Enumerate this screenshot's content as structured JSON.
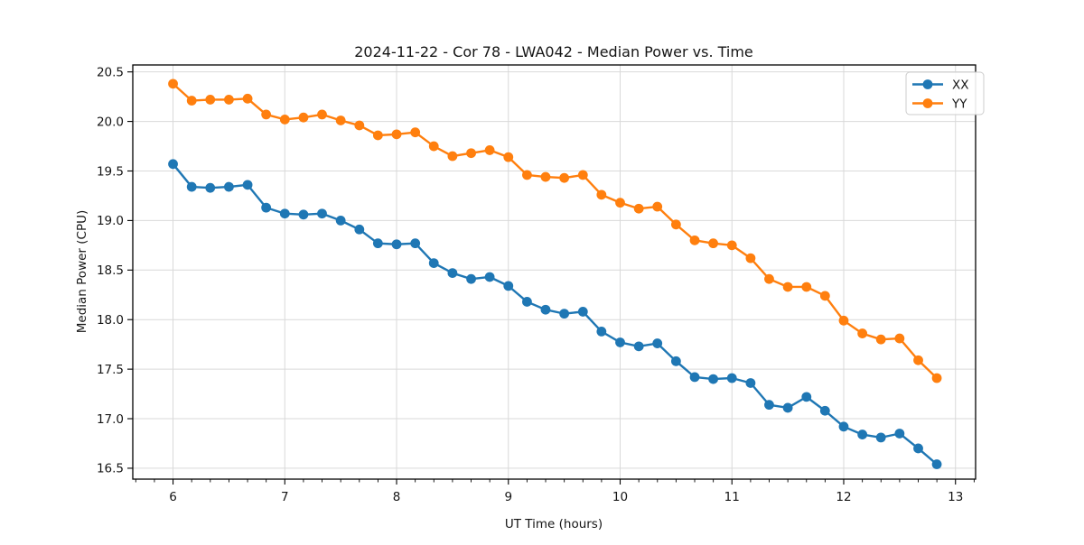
{
  "figure": {
    "background": "#ffffff",
    "spine_color": "#000000",
    "grid_color": "#d9d9d9",
    "text_color": "#151515"
  },
  "legend": {
    "position": "upper right",
    "items": [
      {
        "label": "XX",
        "color": "#1f77b4"
      },
      {
        "label": "YY",
        "color": "#ff7f0e"
      }
    ]
  },
  "chart_data": {
    "type": "line",
    "title": "2024-11-22 - Cor 78 - LWA042 - Median Power vs. Time",
    "xlabel": "UT Time (hours)",
    "ylabel": "Median Power (CPU)",
    "grid": true,
    "marker": "o",
    "xlim": [
      5.64,
      13.18
    ],
    "ylim": [
      16.39,
      20.57
    ],
    "xticks": [
      6,
      7,
      8,
      9,
      10,
      11,
      12,
      13
    ],
    "yticks": [
      16.5,
      17.0,
      17.5,
      18.0,
      18.5,
      19.0,
      19.5,
      20.0,
      20.5
    ],
    "x_minor_step": 0.16667,
    "legend_position": "upper right",
    "x": [
      6.0,
      6.167,
      6.333,
      6.5,
      6.667,
      6.833,
      7.0,
      7.167,
      7.333,
      7.5,
      7.667,
      7.833,
      8.0,
      8.167,
      8.333,
      8.5,
      8.667,
      8.833,
      9.0,
      9.167,
      9.333,
      9.5,
      9.667,
      9.833,
      10.0,
      10.167,
      10.333,
      10.5,
      10.667,
      10.833,
      11.0,
      11.167,
      11.333,
      11.5,
      11.667,
      11.833,
      12.0,
      12.167,
      12.333,
      12.5,
      12.667,
      12.833
    ],
    "series": [
      {
        "name": "XX",
        "color": "#1f77b4",
        "values": [
          19.57,
          19.34,
          19.33,
          19.34,
          19.36,
          19.13,
          19.07,
          19.06,
          19.07,
          19.0,
          18.91,
          18.77,
          18.76,
          18.77,
          18.57,
          18.47,
          18.41,
          18.43,
          18.34,
          18.18,
          18.1,
          18.06,
          18.08,
          17.88,
          17.77,
          17.73,
          17.76,
          17.58,
          17.42,
          17.4,
          17.41,
          17.36,
          17.14,
          17.11,
          17.22,
          17.08,
          16.92,
          16.84,
          16.81,
          16.85,
          16.7,
          16.54
        ]
      },
      {
        "name": "YY",
        "color": "#ff7f0e",
        "values": [
          20.38,
          20.21,
          20.22,
          20.22,
          20.23,
          20.07,
          20.02,
          20.04,
          20.07,
          20.01,
          19.96,
          19.86,
          19.87,
          19.89,
          19.75,
          19.65,
          19.68,
          19.71,
          19.64,
          19.46,
          19.44,
          19.43,
          19.46,
          19.26,
          19.18,
          19.12,
          19.14,
          18.96,
          18.8,
          18.77,
          18.75,
          18.62,
          18.41,
          18.33,
          18.33,
          18.24,
          17.99,
          17.86,
          17.8,
          17.81,
          17.59,
          17.41
        ]
      }
    ]
  }
}
